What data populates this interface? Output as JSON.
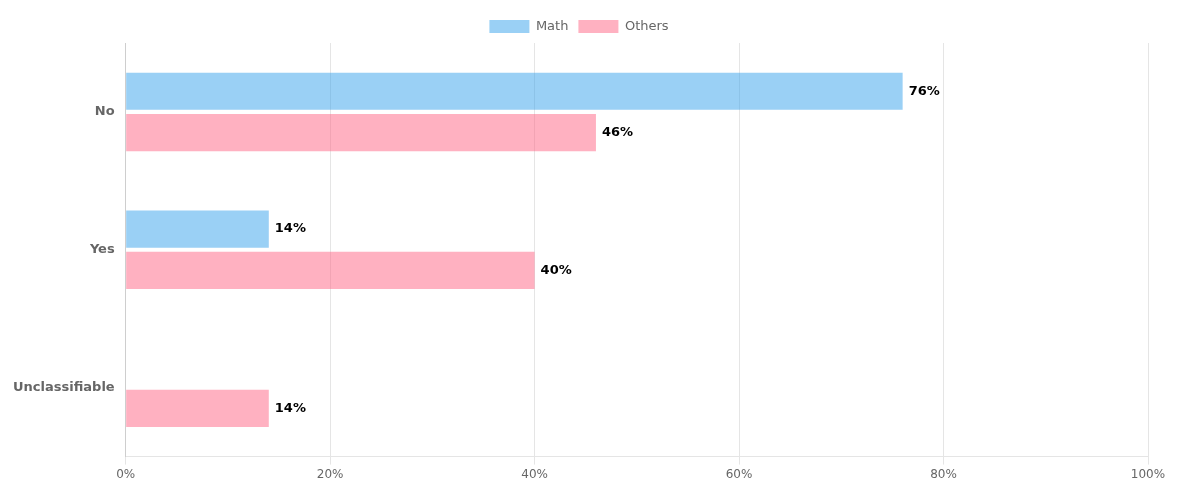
{
  "chart_data": {
    "type": "bar",
    "orientation": "horizontal",
    "categories": [
      "No",
      "Yes",
      "Unclassifiable"
    ],
    "series": [
      {
        "name": "Math",
        "values": [
          76,
          14,
          0
        ],
        "value_labels": [
          "76%",
          "14%",
          null
        ]
      },
      {
        "name": "Others",
        "values": [
          46,
          40,
          14
        ],
        "value_labels": [
          "46%",
          "40%",
          "14%"
        ]
      }
    ],
    "xlim": [
      0,
      100
    ],
    "xticks": [
      {
        "value": 0,
        "label": "0%"
      },
      {
        "value": 20,
        "label": "20%"
      },
      {
        "value": 40,
        "label": "40%"
      },
      {
        "value": 60,
        "label": "60%"
      },
      {
        "value": 80,
        "label": "80%"
      },
      {
        "value": 100,
        "label": "100%"
      }
    ],
    "grid": true,
    "legend": "top",
    "data_labels": true
  }
}
